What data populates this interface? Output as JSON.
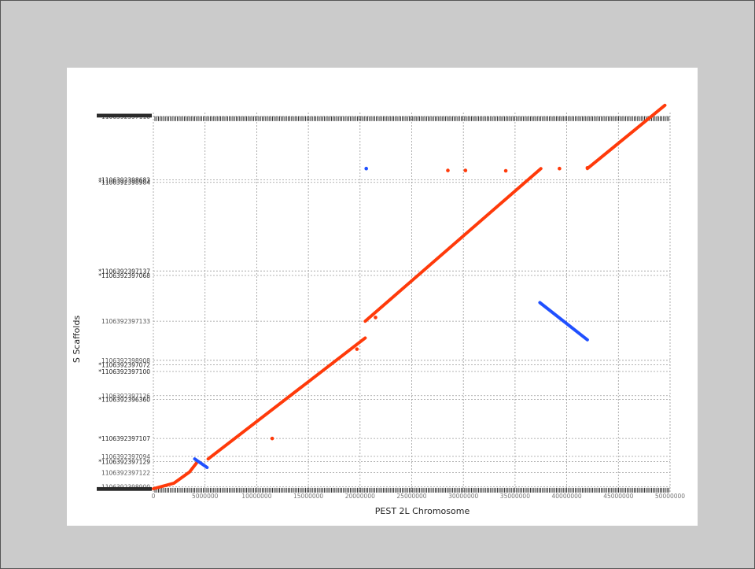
{
  "chart_data": {
    "type": "scatter",
    "xlabel": "PEST 2L Chromosome",
    "ylabel": "S Scaffolds",
    "xlim": [
      0,
      50000000
    ],
    "x_ticks": [
      0,
      5000000,
      10000000,
      15000000,
      20000000,
      25000000,
      30000000,
      35000000,
      40000000,
      45000000,
      50000000
    ],
    "x_tick_labels": [
      "0",
      "5000000",
      "10000000",
      "15000000",
      "20000000",
      "25000000",
      "30000000",
      "35000000",
      "40000000",
      "45000000",
      "50000000"
    ],
    "y_scale": "scaffold-order",
    "y_range": [
      0,
      100
    ],
    "y_boundaries": [
      {
        "y": 100,
        "label": "1106392397110"
      },
      {
        "y": 83,
        "label": "*1106392398683"
      },
      {
        "y": 82.3,
        "label": "*1106392398984"
      },
      {
        "y": 58.5,
        "label": "*1106392397137"
      },
      {
        "y": 57.3,
        "label": "*1106392397068"
      },
      {
        "y": 45,
        "label": "1106392397133"
      },
      {
        "y": 34.5,
        "label": "1106392398908"
      },
      {
        "y": 33.3,
        "label": "*1106392397072"
      },
      {
        "y": 31.5,
        "label": "*1106392397100"
      },
      {
        "y": 25,
        "label": "1106392397126"
      },
      {
        "y": 24,
        "label": "*1106392396360"
      },
      {
        "y": 13.5,
        "label": "*1106392397107"
      },
      {
        "y": 8.7,
        "label": "1106392397094"
      },
      {
        "y": 7.3,
        "label": "*1106392397129"
      },
      {
        "y": 4.3,
        "label": "1106392397122"
      },
      {
        "y": 0.5,
        "label": "1106392398900"
      }
    ],
    "grid": true,
    "series": [
      {
        "color": "#ff3a0a",
        "segments": [
          {
            "x": [
              0,
              2000000,
              3500000,
              4200000
            ],
            "y": [
              0,
              1.5,
              4.5,
              7
            ]
          },
          {
            "x": [
              5300000,
              20500000
            ],
            "y": [
              8,
              40.5
            ]
          },
          {
            "x": [
              20500000,
              37500000
            ],
            "y": [
              45,
              86
            ]
          },
          {
            "x": [
              42000000,
              49500000
            ],
            "y": [
              86,
              103
            ]
          }
        ],
        "points": [
          {
            "x": 11500000,
            "y": 13.5
          },
          {
            "x": 19700000,
            "y": 37.5
          },
          {
            "x": 21500000,
            "y": 46
          },
          {
            "x": 28500000,
            "y": 85.5
          },
          {
            "x": 30200000,
            "y": 85.5
          },
          {
            "x": 34100000,
            "y": 85.4
          },
          {
            "x": 39300000,
            "y": 86
          },
          {
            "x": 42000000,
            "y": 86.2
          }
        ]
      },
      {
        "color": "#2050ff",
        "segments": [
          {
            "x": [
              4000000,
              5200000
            ],
            "y": [
              8,
              5.7
            ]
          },
          {
            "x": [
              37400000,
              42000000
            ],
            "y": [
              50,
              40
            ]
          }
        ],
        "points": [
          {
            "x": 20600000,
            "y": 86
          }
        ]
      }
    ]
  }
}
